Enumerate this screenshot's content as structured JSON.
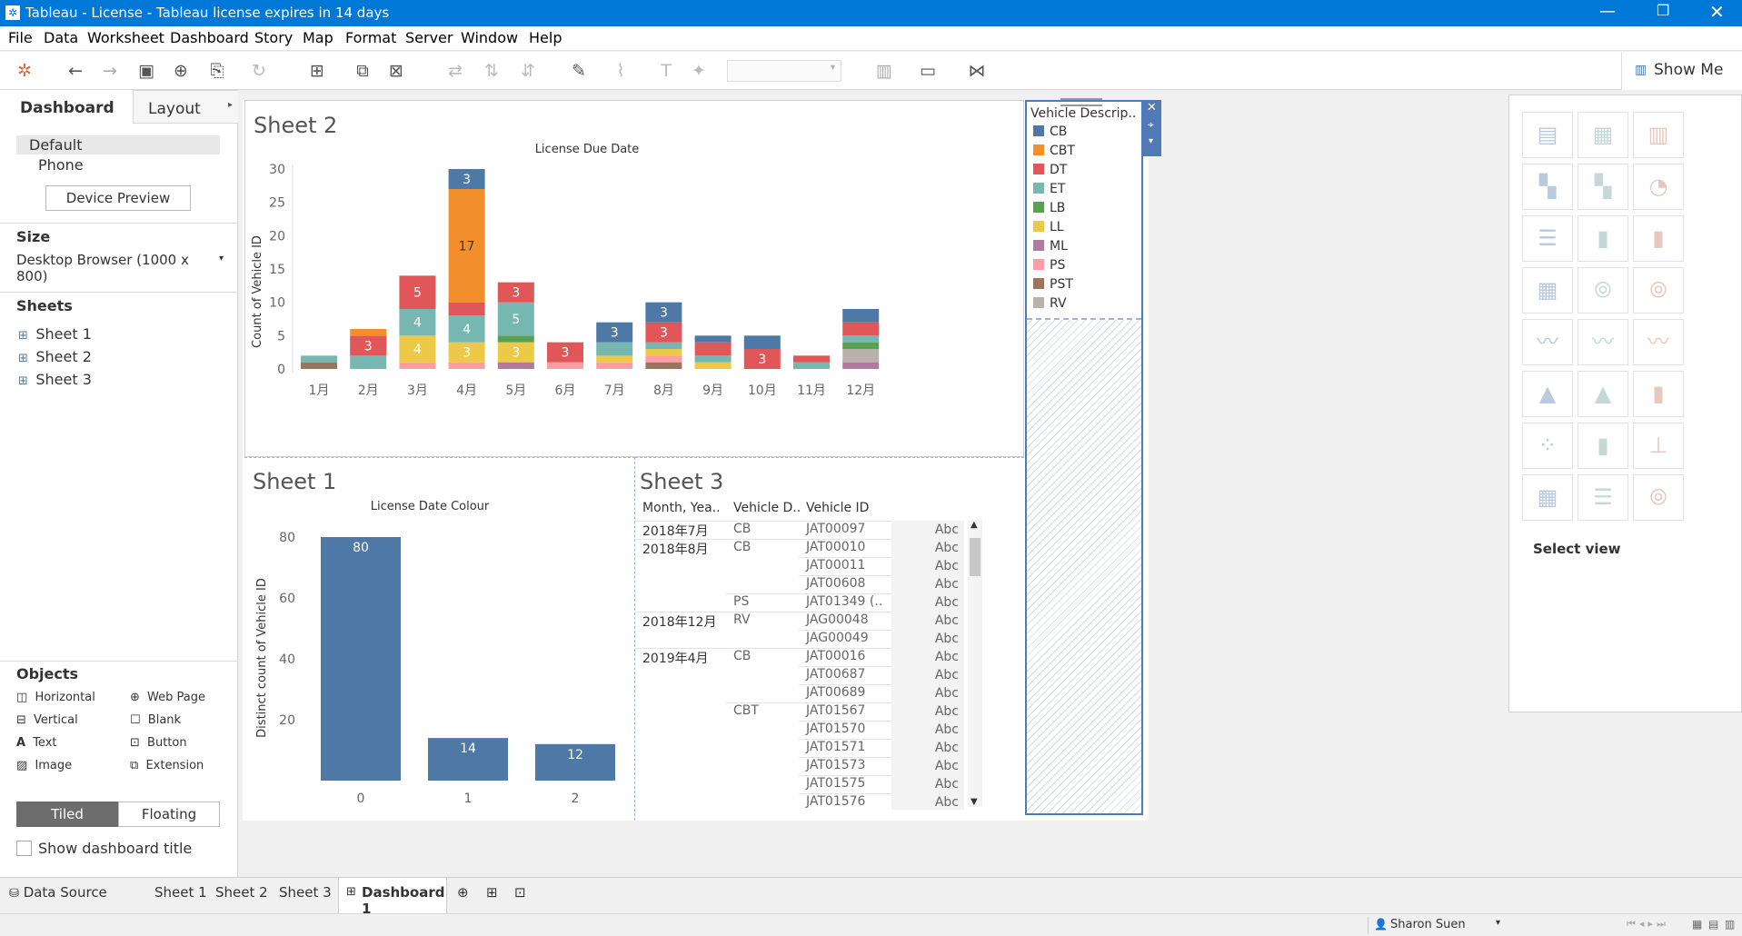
{
  "window": {
    "title": "Tableau - License - Tableau license expires in 14 days"
  },
  "menu": [
    "File",
    "Data",
    "Worksheet",
    "Dashboard",
    "Story",
    "Map",
    "Format",
    "Server",
    "Window",
    "Help"
  ],
  "toolbar": {
    "show_me": "Show Me"
  },
  "left_pane": {
    "tabs": {
      "dashboard": "Dashboard",
      "layout": "Layout"
    },
    "devices": {
      "default": "Default",
      "phone": "Phone",
      "preview_button": "Device Preview"
    },
    "size": {
      "heading": "Size",
      "value": "Desktop Browser (1000 x 800)"
    },
    "sheets": {
      "heading": "Sheets",
      "items": [
        "Sheet 1",
        "Sheet 2",
        "Sheet 3"
      ]
    },
    "objects": {
      "heading": "Objects",
      "items": [
        "Horizontal",
        "Web Page",
        "Vertical",
        "Blank",
        "Text",
        "Button",
        "Image",
        "Extension"
      ]
    },
    "mode": {
      "tiled": "Tiled",
      "floating": "Floating"
    },
    "show_title": "Show dashboard title"
  },
  "sheet2": {
    "title": "Sheet 2",
    "chart_title": "License Due Date",
    "ylabel": "Count of Vehicle ID"
  },
  "sheet1": {
    "title": "Sheet 1",
    "chart_title": "License Date Colour",
    "ylabel": "Distinct count of Vehicle ID"
  },
  "sheet3": {
    "title": "Sheet 3",
    "headers": [
      "Month, Yea..",
      "Vehicle D..",
      "Vehicle ID"
    ],
    "rows": [
      {
        "month": "2018年7月",
        "desc": "CB",
        "id": "JAT00097",
        "val": "Abc"
      },
      {
        "month": "2018年8月",
        "desc": "CB",
        "id": "JAT00010",
        "val": "Abc"
      },
      {
        "month": "",
        "desc": "",
        "id": "JAT00011",
        "val": "Abc"
      },
      {
        "month": "",
        "desc": "",
        "id": "JAT00608",
        "val": "Abc"
      },
      {
        "month": "",
        "desc": "PS",
        "id": "JAT01349 (..",
        "val": "Abc"
      },
      {
        "month": "2018年12月",
        "desc": "RV",
        "id": "JAG00048",
        "val": "Abc"
      },
      {
        "month": "",
        "desc": "",
        "id": "JAG00049",
        "val": "Abc"
      },
      {
        "month": "2019年4月",
        "desc": "CB",
        "id": "JAT00016",
        "val": "Abc"
      },
      {
        "month": "",
        "desc": "",
        "id": "JAT00687",
        "val": "Abc"
      },
      {
        "month": "",
        "desc": "",
        "id": "JAT00689",
        "val": "Abc"
      },
      {
        "month": "",
        "desc": "CBT",
        "id": "JAT01567",
        "val": "Abc"
      },
      {
        "month": "",
        "desc": "",
        "id": "JAT01570",
        "val": "Abc"
      },
      {
        "month": "",
        "desc": "",
        "id": "JAT01571",
        "val": "Abc"
      },
      {
        "month": "",
        "desc": "",
        "id": "JAT01573",
        "val": "Abc"
      },
      {
        "month": "",
        "desc": "",
        "id": "JAT01575",
        "val": "Abc"
      },
      {
        "month": "",
        "desc": "",
        "id": "JAT01576",
        "val": "Abc"
      }
    ]
  },
  "legend": {
    "title": "Vehicle Descrip..",
    "items": [
      {
        "name": "CB",
        "color": "#4e79a7"
      },
      {
        "name": "CBT",
        "color": "#f28e2b"
      },
      {
        "name": "DT",
        "color": "#e15759"
      },
      {
        "name": "ET",
        "color": "#76b7b2"
      },
      {
        "name": "LB",
        "color": "#59a14f"
      },
      {
        "name": "LL",
        "color": "#edc948"
      },
      {
        "name": "ML",
        "color": "#b07aa1"
      },
      {
        "name": "PS",
        "color": "#ff9da7"
      },
      {
        "name": "PST",
        "color": "#9c755f"
      },
      {
        "name": "RV",
        "color": "#bab0ac"
      }
    ]
  },
  "show_me": {
    "select_view": "Select view"
  },
  "bottom_tabs": {
    "data_source": "Data Source",
    "tabs": [
      "Sheet 1",
      "Sheet 2",
      "Sheet 3",
      "Dashboard 1"
    ]
  },
  "status": {
    "user": "Sharon Suen"
  },
  "chart_data": [
    {
      "type": "bar",
      "stacked": true,
      "title": "License Due Date",
      "ylabel": "Count of Vehicle ID",
      "categories": [
        "1月",
        "2月",
        "3月",
        "4月",
        "5月",
        "6月",
        "7月",
        "8月",
        "9月",
        "10月",
        "11月",
        "12月"
      ],
      "ylim": [
        0,
        30
      ],
      "yticks": [
        0,
        5,
        10,
        15,
        20,
        25,
        30
      ],
      "series": [
        {
          "name": "PST",
          "color": "#9c755f",
          "values": [
            1,
            0,
            0,
            0,
            0,
            0,
            0,
            1,
            0,
            0,
            0,
            0
          ]
        },
        {
          "name": "ML",
          "color": "#b07aa1",
          "values": [
            0,
            0,
            0,
            0,
            1,
            0,
            0,
            0,
            0,
            0,
            0,
            1
          ]
        },
        {
          "name": "RV",
          "color": "#bab0ac",
          "values": [
            0,
            0,
            0,
            0,
            0,
            0,
            0,
            0,
            0,
            0,
            0,
            2
          ]
        },
        {
          "name": "PS",
          "color": "#ff9da7",
          "values": [
            0,
            0,
            1,
            1,
            0,
            1,
            1,
            1,
            0,
            0,
            0,
            0
          ]
        },
        {
          "name": "LL",
          "color": "#edc948",
          "values": [
            0,
            0,
            4,
            3,
            3,
            0,
            1,
            1,
            1,
            0,
            0,
            0
          ]
        },
        {
          "name": "LB",
          "color": "#59a14f",
          "values": [
            0,
            0,
            0,
            0,
            1,
            0,
            0,
            0,
            0,
            0,
            0,
            1
          ]
        },
        {
          "name": "ET",
          "color": "#76b7b2",
          "values": [
            1,
            2,
            4,
            4,
            5,
            0,
            2,
            1,
            1,
            0,
            1,
            1
          ]
        },
        {
          "name": "DT",
          "color": "#e15759",
          "values": [
            0,
            3,
            5,
            2,
            3,
            3,
            0,
            3,
            2,
            3,
            1,
            2
          ]
        },
        {
          "name": "CBT",
          "color": "#f28e2b",
          "values": [
            0,
            1,
            0,
            17,
            0,
            0,
            0,
            0,
            0,
            0,
            0,
            0
          ]
        },
        {
          "name": "CB",
          "color": "#4e79a7",
          "values": [
            0,
            0,
            0,
            3,
            0,
            0,
            3,
            3,
            1,
            2,
            0,
            2
          ]
        }
      ]
    },
    {
      "type": "bar",
      "title": "License Date Colour",
      "ylabel": "Distinct count of Vehicle ID",
      "categories": [
        "0",
        "1",
        "2"
      ],
      "values": [
        80,
        14,
        12
      ],
      "ylim": [
        0,
        80
      ],
      "yticks": [
        20,
        40,
        60,
        80
      ],
      "color": "#4e79a7"
    }
  ]
}
